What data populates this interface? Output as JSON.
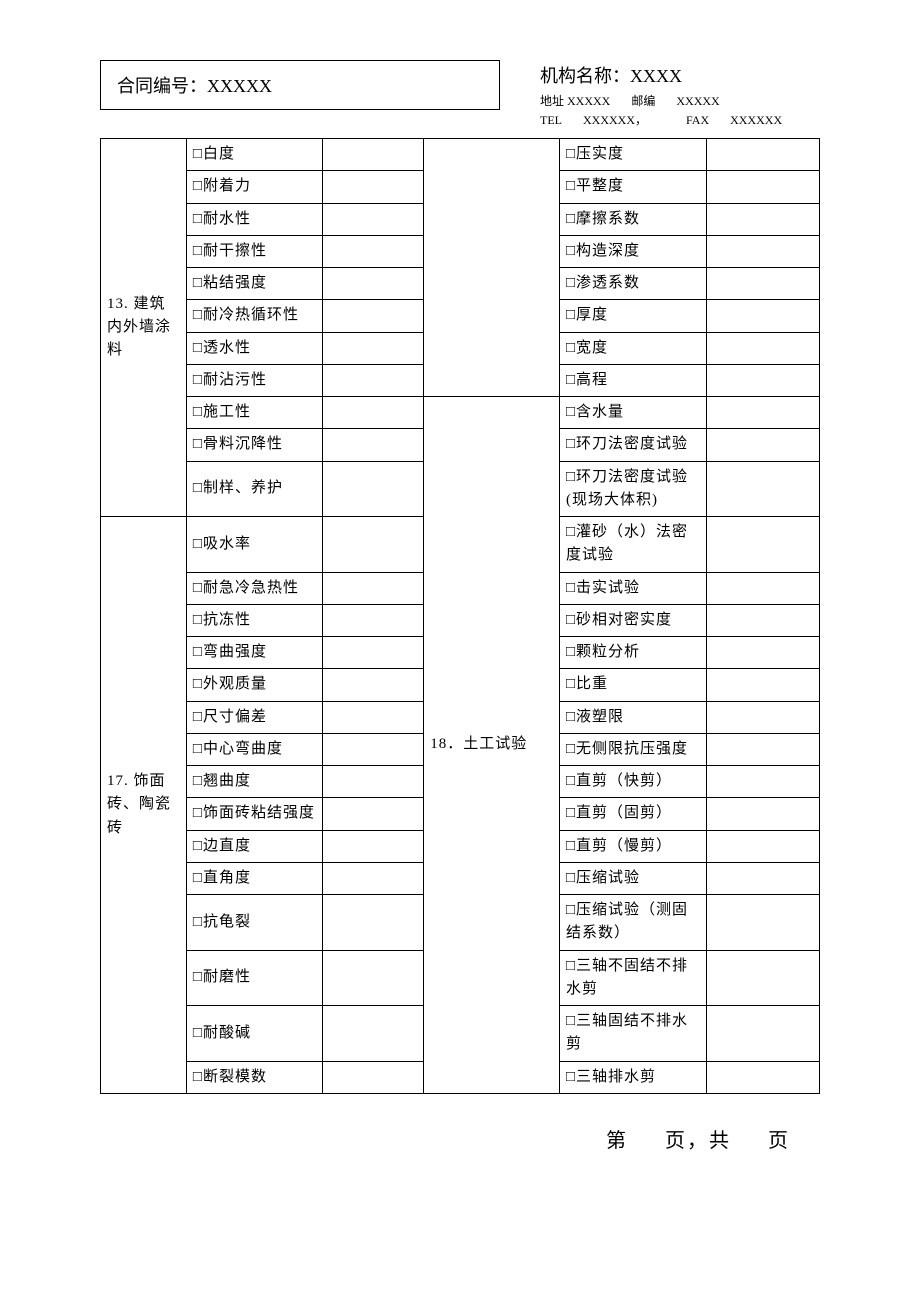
{
  "header": {
    "contract_label": "合同编号：XXXXX",
    "org_name": "机构名称：XXXX",
    "addr_label": "地址",
    "addr_value": "XXXXX",
    "post_label": "邮编",
    "post_value": "XXXXX",
    "tel_label": "TEL",
    "tel_value": "XXXXXX，",
    "fax_label": "FAX",
    "fax_value": "XXXXXX"
  },
  "cats": {
    "c13": "13. 建筑内外墙涂料",
    "c17": "17. 饰面砖、陶瓷砖",
    "c18": "18．土工试验"
  },
  "left": [
    "□白度",
    "□附着力",
    "□耐水性",
    "□耐干擦性",
    "□粘结强度",
    "□耐冷热循环性",
    "□透水性",
    "□耐沾污性",
    "□施工性",
    "□骨料沉降性",
    "□制样、养护",
    "□吸水率",
    "□耐急冷急热性",
    "□抗冻性",
    "□弯曲强度",
    "□外观质量",
    "□尺寸偏差",
    "□中心弯曲度",
    "□翘曲度",
    "□饰面砖粘结强度",
    "□边直度",
    "□直角度",
    "□抗龟裂",
    "□耐磨性",
    "□耐酸碱",
    "□断裂模数"
  ],
  "right": [
    "□压实度",
    "□平整度",
    "□摩擦系数",
    "□构造深度",
    "□渗透系数",
    "□厚度",
    "□宽度",
    "□高程",
    "□含水量",
    "□环刀法密度试验",
    "□环刀法密度试验(现场大体积)",
    "□灌砂（水）法密度试验",
    "□击实试验",
    "□砂相对密实度",
    "□颗粒分析",
    "□比重",
    "□液塑限",
    "□无侧限抗压强度",
    "□直剪（快剪）",
    "□直剪（固剪）",
    "□直剪（慢剪）",
    "□压缩试验",
    "□压缩试验（测固结系数）",
    "□三轴不固结不排水剪",
    "□三轴固结不排水剪",
    "□三轴排水剪"
  ],
  "footer": {
    "page_prefix": "第",
    "page_mid": "页，共",
    "page_suffix": "页"
  },
  "style": {
    "border_color": "#000000",
    "background": "#ffffff",
    "text_color": "#000000",
    "body_fontsize": 15,
    "header_fontsize": 18,
    "org_small_fontsize": 12,
    "footer_fontsize": 20
  }
}
